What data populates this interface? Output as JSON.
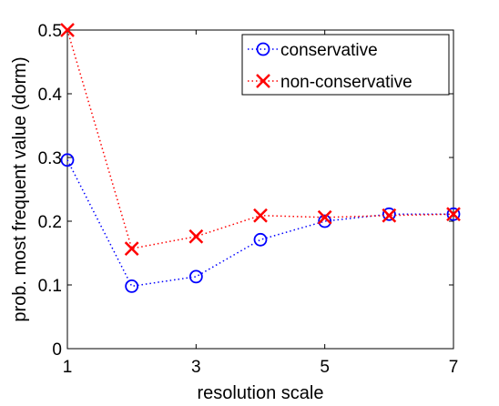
{
  "chart_data": {
    "type": "line",
    "title": "",
    "xlabel": "resolution scale",
    "ylabel": "prob. most frequent value (dorm)",
    "xlim": [
      1,
      7
    ],
    "ylim": [
      0,
      0.5
    ],
    "x_ticks": [
      1,
      3,
      5,
      7
    ],
    "y_ticks": [
      0,
      0.1,
      0.2,
      0.3,
      0.4,
      0.5
    ],
    "x_tick_labels": [
      "1",
      "3",
      "5",
      "7"
    ],
    "y_tick_labels": [
      "0",
      "0.1",
      "0.2",
      "0.3",
      "0.4",
      "0.5"
    ],
    "grid": false,
    "legend_position": "top-right",
    "x": [
      1,
      2,
      3,
      4,
      5,
      6,
      7
    ],
    "series": [
      {
        "name": "conservative",
        "values": [
          0.296,
          0.098,
          0.113,
          0.171,
          0.2,
          0.211,
          0.211
        ],
        "color": "#0000ff",
        "marker": "circle",
        "line_style": "dotted"
      },
      {
        "name": "non-conservative",
        "values": [
          0.5,
          0.157,
          0.176,
          0.209,
          0.206,
          0.209,
          0.211
        ],
        "color": "#ff0000",
        "marker": "x",
        "line_style": "dotted"
      }
    ]
  }
}
